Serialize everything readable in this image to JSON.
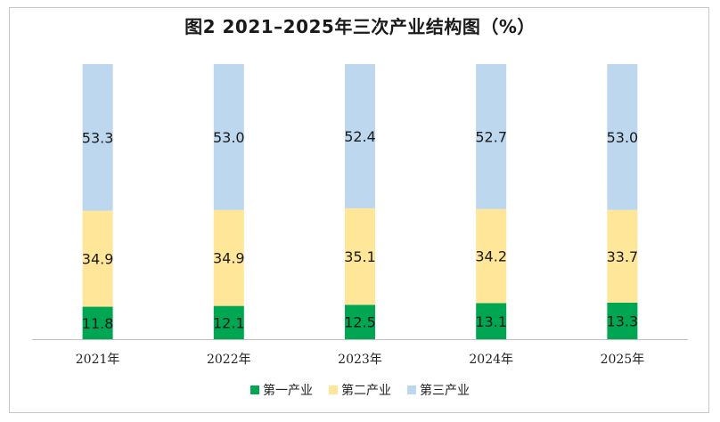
{
  "title": "图2  2021–2025年三次产业结构图（%）",
  "chart_data": {
    "type": "bar",
    "stacked": true,
    "title": "图2  2021–2025年三次产业结构图（%）",
    "categories": [
      "2021年",
      "2022年",
      "2023年",
      "2024年",
      "2025年"
    ],
    "series": [
      {
        "name": "第一产业",
        "color": "#00a651",
        "values": [
          11.8,
          12.1,
          12.5,
          13.1,
          13.3
        ]
      },
      {
        "name": "第二产业",
        "color": "#ffe699",
        "values": [
          34.9,
          34.9,
          35.1,
          34.2,
          33.7
        ]
      },
      {
        "name": "第三产业",
        "color": "#bdd7ee",
        "values": [
          53.3,
          53.0,
          52.4,
          52.7,
          53.0
        ]
      }
    ],
    "ylim": [
      0,
      100
    ],
    "grid": false,
    "legend": "bottom"
  }
}
